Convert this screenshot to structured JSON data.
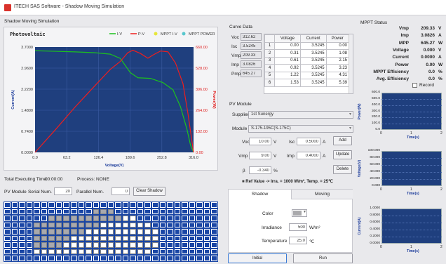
{
  "app": {
    "title": "ITECH SAS Software - Shadow Moving Simulation"
  },
  "sim_section": {
    "title": "Shadow Moving Simulation"
  },
  "chart_data": {
    "type": "line",
    "title": "Photovoltaic",
    "xlabel": "Voltage(V)",
    "ylabel": "Current(A)",
    "y2label": "Power(W)",
    "xlim": [
      0,
      316
    ],
    "ylim": [
      0,
      3.7
    ],
    "y2lim": [
      0,
      660
    ],
    "x_ticks": [
      "0.0",
      "63.2",
      "126.4",
      "189.6",
      "252.8",
      "316.0"
    ],
    "y_ticks": [
      "0.0000",
      "0.7400",
      "1.4800",
      "2.2200",
      "2.9600",
      "3.7000"
    ],
    "y2_ticks": [
      "0.00",
      "132.00",
      "264.00",
      "396.00",
      "528.00",
      "660.00"
    ],
    "legend": [
      "I-V",
      "P-V",
      "MPPT I-V",
      "MPPT POWER"
    ],
    "colors": {
      "iv": "#1dc21d",
      "pv": "#ee1e1e",
      "mppt_iv": "#e6e63a",
      "mppt_power": "#59c7ce",
      "bg": "#1f3f7e",
      "grid": "#3d5da3"
    },
    "series": [
      {
        "name": "I-V",
        "x": [
          0,
          40,
          80,
          120,
          150,
          170,
          180,
          190,
          205,
          230,
          255,
          275,
          290,
          303,
          310,
          316
        ],
        "y": [
          3.57,
          3.55,
          3.53,
          3.5,
          3.45,
          3.3,
          3.05,
          2.8,
          2.62,
          2.6,
          2.45,
          2.2,
          1.6,
          0.8,
          0.25,
          0
        ]
      },
      {
        "name": "P-V",
        "x": [
          0,
          40,
          80,
          120,
          150,
          170,
          185,
          195,
          210,
          225,
          235,
          250,
          265,
          280,
          295,
          305,
          316
        ],
        "y": [
          0,
          140,
          285,
          420,
          520,
          570,
          625,
          640,
          620,
          590,
          610,
          635,
          630,
          560,
          430,
          240,
          0
        ]
      }
    ]
  },
  "status": {
    "time_label": "Total Executing Time:",
    "time": "00:00:00",
    "process_label": "Process:",
    "process": "NONE"
  },
  "pv_controls": {
    "module_label": "PV Module",
    "serial_label": "Serial Num.",
    "serial_value": "20",
    "parallel_label": "Parallel Num.",
    "parallel_value": "0",
    "clear_button": "Clear Shadow"
  },
  "shadow_grid": {
    "cols": 29,
    "rows": 9,
    "light_color": "#ffffff",
    "dark_color": "#a9a9ac",
    "blue": "#1a46a5",
    "dark_cells": [
      [
        1,
        12
      ],
      [
        1,
        13
      ],
      [
        1,
        14
      ],
      [
        2,
        6
      ],
      [
        2,
        7
      ],
      [
        2,
        8
      ],
      [
        2,
        9
      ],
      [
        2,
        10
      ],
      [
        2,
        11
      ],
      [
        2,
        12
      ],
      [
        2,
        13
      ],
      [
        2,
        14
      ],
      [
        2,
        15
      ],
      [
        3,
        4
      ],
      [
        3,
        5
      ],
      [
        3,
        6
      ],
      [
        3,
        7
      ],
      [
        3,
        8
      ],
      [
        3,
        9
      ],
      [
        3,
        10
      ],
      [
        3,
        11
      ],
      [
        3,
        12
      ],
      [
        4,
        4
      ],
      [
        4,
        5
      ],
      [
        4,
        6
      ],
      [
        4,
        7
      ],
      [
        4,
        8
      ],
      [
        4,
        9
      ],
      [
        4,
        10
      ],
      [
        5,
        4
      ],
      [
        5,
        5
      ],
      [
        5,
        6
      ],
      [
        5,
        7
      ],
      [
        5,
        8
      ],
      [
        6,
        4
      ],
      [
        6,
        5
      ],
      [
        6,
        6
      ],
      [
        6,
        7
      ]
    ],
    "light_cells": [
      [
        2,
        16
      ],
      [
        2,
        17
      ],
      [
        3,
        13
      ],
      [
        3,
        14
      ],
      [
        3,
        15
      ],
      [
        3,
        16
      ],
      [
        3,
        17
      ],
      [
        3,
        18
      ],
      [
        3,
        19
      ],
      [
        4,
        11
      ],
      [
        4,
        12
      ],
      [
        4,
        13
      ],
      [
        4,
        14
      ],
      [
        4,
        15
      ],
      [
        4,
        16
      ],
      [
        4,
        17
      ],
      [
        4,
        18
      ],
      [
        4,
        19
      ],
      [
        4,
        20
      ],
      [
        5,
        9
      ],
      [
        5,
        10
      ],
      [
        5,
        11
      ],
      [
        5,
        12
      ],
      [
        5,
        13
      ],
      [
        5,
        14
      ],
      [
        5,
        15
      ],
      [
        5,
        16
      ],
      [
        5,
        17
      ],
      [
        5,
        18
      ],
      [
        5,
        19
      ],
      [
        5,
        20
      ],
      [
        6,
        8
      ],
      [
        6,
        9
      ],
      [
        6,
        10
      ],
      [
        6,
        11
      ],
      [
        6,
        12
      ],
      [
        6,
        13
      ],
      [
        6,
        14
      ],
      [
        6,
        15
      ],
      [
        6,
        16
      ],
      [
        6,
        17
      ],
      [
        6,
        18
      ],
      [
        6,
        19
      ],
      [
        6,
        20
      ],
      [
        7,
        4
      ],
      [
        7,
        5
      ],
      [
        7,
        6
      ],
      [
        7,
        7
      ],
      [
        7,
        8
      ],
      [
        7,
        9
      ],
      [
        7,
        10
      ],
      [
        7,
        11
      ],
      [
        7,
        12
      ],
      [
        7,
        13
      ],
      [
        7,
        14
      ],
      [
        7,
        15
      ],
      [
        7,
        16
      ],
      [
        7,
        17
      ],
      [
        7,
        18
      ],
      [
        7,
        19
      ]
    ]
  },
  "curve_data": {
    "title": "Curve Data",
    "fields": [
      {
        "label": "Voc",
        "value": "312.62"
      },
      {
        "label": "Isc",
        "value": "3.5245"
      },
      {
        "label": "Vmp",
        "value": "209.33"
      },
      {
        "label": "Imp",
        "value": "3.0826"
      },
      {
        "label": "Pmp",
        "value": "645.27"
      }
    ],
    "headers": [
      "",
      "Voltage",
      "Current",
      "Power"
    ],
    "rows": [
      [
        "1",
        "0.00",
        "3.5245",
        "0.00"
      ],
      [
        "2",
        "0.31",
        "3.5245",
        "1.08"
      ],
      [
        "3",
        "0.61",
        "3.5245",
        "2.15"
      ],
      [
        "4",
        "0.92",
        "3.5245",
        "3.23"
      ],
      [
        "5",
        "1.22",
        "3.5245",
        "4.31"
      ],
      [
        "6",
        "1.53",
        "3.5245",
        "5.39"
      ]
    ]
  },
  "pv_module": {
    "title": "PV Module",
    "supplier_label": "Supplier",
    "supplier": "1st Sunergy",
    "module_label": "Module",
    "module": "S-175-195C(S-175C)",
    "voc_label": "Voc",
    "voc": "10.00",
    "isc_label": "Isc",
    "isc": "0.5000",
    "vmp_label": "Vmp",
    "vmp": "9.00",
    "imp_label": "Imp",
    "imp": "0.4000",
    "beta_label": "β",
    "beta": "-0.340",
    "unit_v": "V",
    "unit_a": "A",
    "unit_pct": "%",
    "add_button": "Add",
    "update_button": "Update",
    "delete_button": "Delete",
    "ref_note": "Ref Value -> Irra. = 1000 W/m², Temp. = 25℃"
  },
  "shadow_tabs": {
    "tabs": [
      "Shadow",
      "Moving"
    ],
    "color_label": "Color",
    "irradiance_label": "Irradiance",
    "irradiance": "500",
    "irradiance_unit": "W/m²",
    "temperature_label": "Temperature",
    "temperature": "25.0",
    "temperature_unit": "℃"
  },
  "actions": {
    "initial": "Initial",
    "run": "Run"
  },
  "mppt": {
    "title": "MPPT Status",
    "rows": [
      {
        "label": "Vmp",
        "value": "209.33",
        "unit": "V"
      },
      {
        "label": "Imp",
        "value": "3.0826",
        "unit": "A"
      },
      {
        "label": "MPP",
        "value": "645.27",
        "unit": "W"
      },
      {
        "label": "Voltage",
        "value": "0.000",
        "unit": "V"
      },
      {
        "label": "Current",
        "value": "0.0000",
        "unit": "A"
      },
      {
        "label": "Power",
        "value": "0.00",
        "unit": "W"
      },
      {
        "label": "MPPT Efficiency",
        "value": "0.0",
        "unit": "%"
      },
      {
        "label": "Avg. Efficiency",
        "value": "0.0",
        "unit": "%"
      }
    ],
    "record_label": "Record",
    "charts": [
      {
        "ylabel": "Power(W)",
        "xlabel": "Time(s)",
        "y_ticks": [
          "600.0",
          "500.0",
          "400.0",
          "300.0",
          "200.0",
          "100.0",
          "0.0"
        ],
        "x_ticks": [
          "0",
          "1",
          "2"
        ]
      },
      {
        "ylabel": "Voltage(V)",
        "xlabel": "Time(s)",
        "y_ticks": [
          "100.000",
          "80.000",
          "60.000",
          "40.000",
          "20.000",
          "0.000"
        ],
        "x_ticks": [
          "0",
          "1",
          "2"
        ]
      },
      {
        "ylabel": "Current(A)",
        "xlabel": "Time(s)",
        "y_ticks": [
          "1.0000",
          "0.8000",
          "0.6000",
          "0.4000",
          "0.2000",
          "0.0000"
        ],
        "x_ticks": [
          "0",
          "1",
          "2"
        ]
      }
    ]
  }
}
